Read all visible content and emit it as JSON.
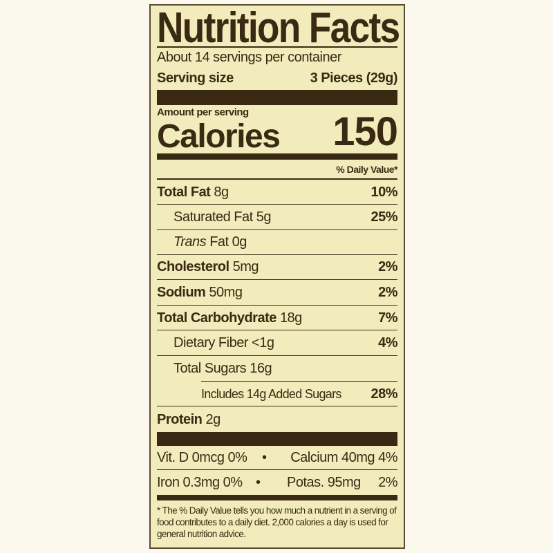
{
  "title": "Nutrition Facts",
  "servings_per_container": "About 14 servings per container",
  "serving_size_label": "Serving size",
  "serving_size_value": "3 Pieces (29g)",
  "amount_per_serving": "Amount per serving",
  "calories_label": "Calories",
  "calories_value": "150",
  "daily_value_header": "% Daily Value*",
  "nutrients": [
    {
      "name": "Total Fat",
      "amount": "8g",
      "dv": "10%"
    },
    {
      "name": "Saturated Fat",
      "amount": "5g",
      "dv": "25%"
    },
    {
      "name": "Trans",
      "name_suffix": "Fat",
      "amount": "0g",
      "dv": ""
    },
    {
      "name": "Cholesterol",
      "amount": "5mg",
      "dv": "2%"
    },
    {
      "name": "Sodium",
      "amount": "50mg",
      "dv": "2%"
    },
    {
      "name": "Total Carbohydrate",
      "amount": "18g",
      "dv": "7%"
    },
    {
      "name": "Dietary Fiber",
      "amount": "<1g",
      "dv": "4%"
    },
    {
      "name": "Total Sugars",
      "amount": "16g",
      "dv": ""
    },
    {
      "name": "Includes 14g Added Sugars",
      "amount": "",
      "dv": "28%"
    },
    {
      "name": "Protein",
      "amount": "2g",
      "dv": ""
    }
  ],
  "vitamins": [
    {
      "left": "Vit. D 0mcg 0%",
      "sep": "•",
      "right": "Calcium 40mg 4%"
    },
    {
      "left": "Iron 0.3mg 0%",
      "sep": "•",
      "right_name": "Potas. 95mg",
      "right_dv": "2%"
    }
  ],
  "footnote": "* The % Daily Value tells you how much a nutrient in a serving of food contributes to a daily diet. 2,000 calories a day is used for general nutrition advice.",
  "colors": {
    "background": "#f2ebbc",
    "ink": "#3b2a13"
  }
}
